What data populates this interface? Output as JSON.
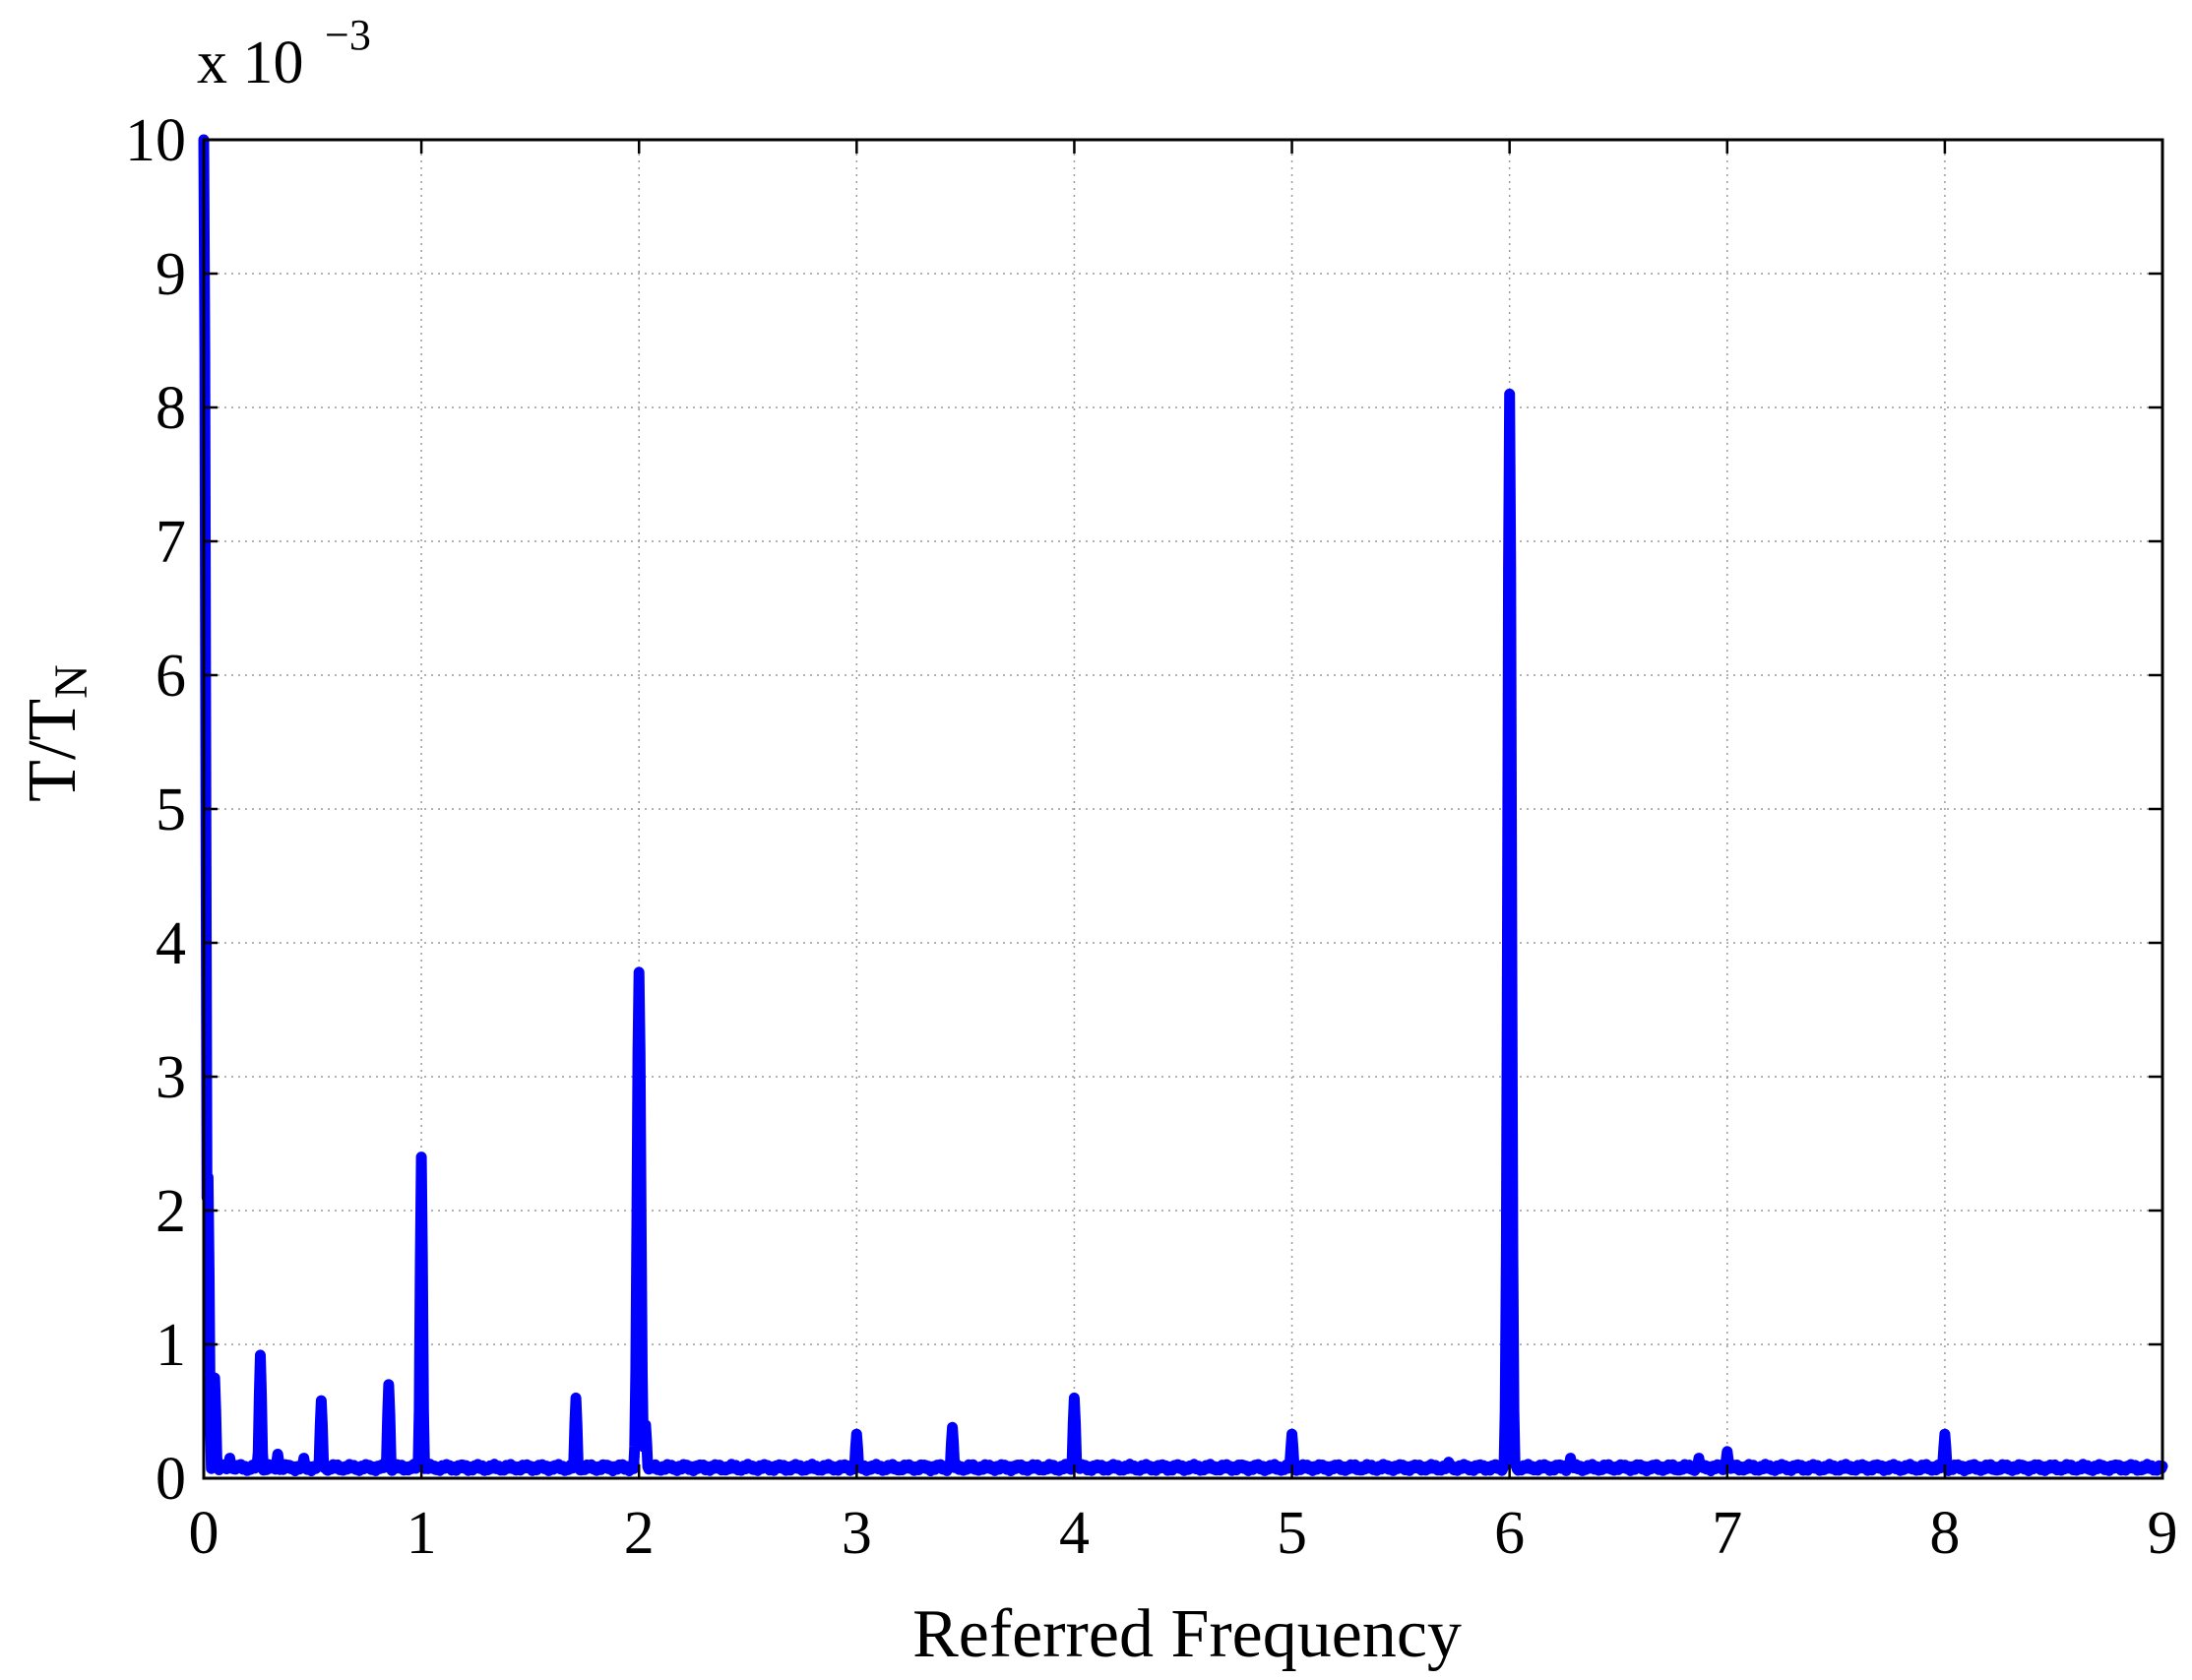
{
  "chart_data": {
    "type": "line",
    "xlabel": "Referred Frequency",
    "ylabel_main": "T/T",
    "ylabel_sub": "N",
    "y_scale_prefix": "x 10",
    "y_scale_exponent": "−3",
    "xlim": [
      0,
      9
    ],
    "ylim": [
      0,
      10
    ],
    "x_ticks": [
      0,
      1,
      2,
      3,
      4,
      5,
      6,
      7,
      8,
      9
    ],
    "y_ticks": [
      0,
      1,
      2,
      3,
      4,
      5,
      6,
      7,
      8,
      9,
      10
    ],
    "grid": true,
    "series_color": "#0000ff",
    "baseline": 0.08,
    "peaks": [
      {
        "x": 0.0,
        "y": 10.0
      },
      {
        "x": 0.02,
        "y": 2.25
      },
      {
        "x": 0.05,
        "y": 0.75
      },
      {
        "x": 0.12,
        "y": 0.15
      },
      {
        "x": 0.26,
        "y": 0.92
      },
      {
        "x": 0.34,
        "y": 0.18
      },
      {
        "x": 0.46,
        "y": 0.15
      },
      {
        "x": 0.54,
        "y": 0.58
      },
      {
        "x": 0.85,
        "y": 0.7
      },
      {
        "x": 1.0,
        "y": 2.4
      },
      {
        "x": 1.71,
        "y": 0.6
      },
      {
        "x": 2.0,
        "y": 3.78
      },
      {
        "x": 2.03,
        "y": 0.4
      },
      {
        "x": 3.0,
        "y": 0.33
      },
      {
        "x": 3.44,
        "y": 0.38
      },
      {
        "x": 4.0,
        "y": 0.6
      },
      {
        "x": 5.0,
        "y": 0.33
      },
      {
        "x": 5.72,
        "y": 0.12
      },
      {
        "x": 6.0,
        "y": 8.1
      },
      {
        "x": 6.28,
        "y": 0.15
      },
      {
        "x": 6.87,
        "y": 0.15
      },
      {
        "x": 7.0,
        "y": 0.2
      },
      {
        "x": 8.0,
        "y": 0.33
      }
    ]
  }
}
